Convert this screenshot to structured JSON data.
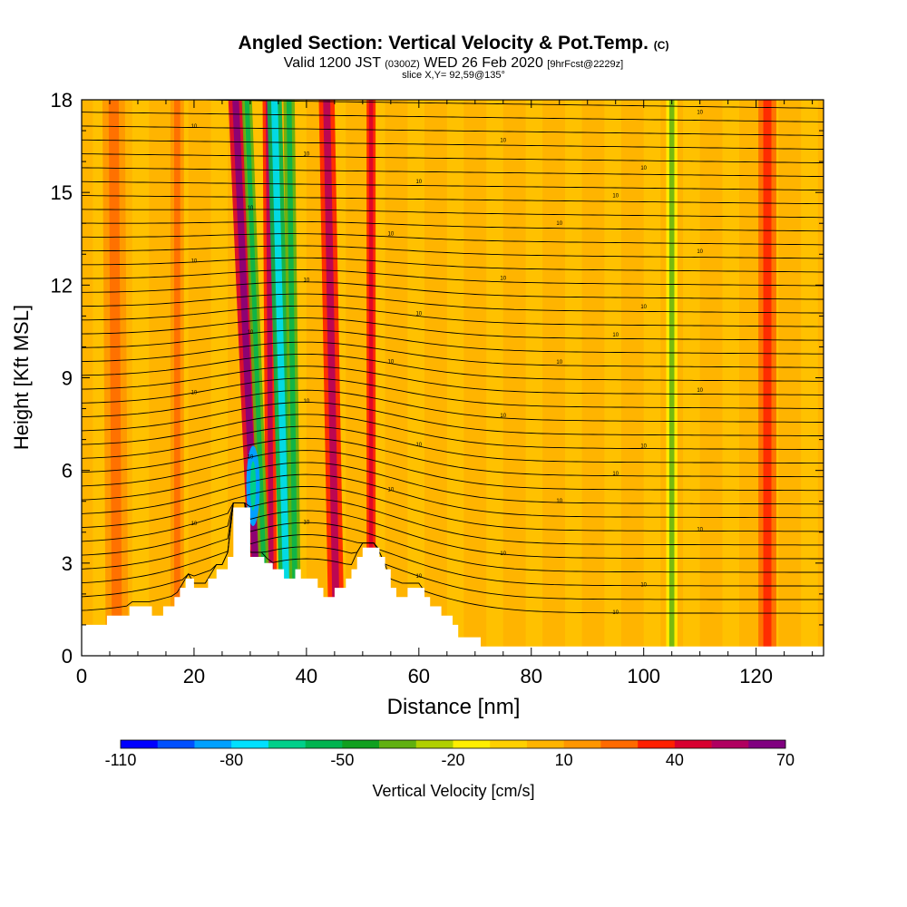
{
  "title": {
    "main": "Angled Section: Vertical Velocity & Pot.Temp.",
    "main_units": "(C)",
    "valid_prefix": "Valid 1200 JST",
    "valid_zulu": "(0300Z)",
    "valid_date": "WED 26 Feb 2020",
    "valid_fcst": "[9hrFcst@2229z]",
    "slice": "slice X,Y= 92,59@135°"
  },
  "chart_data": {
    "type": "heatmap",
    "xlabel": "Distance [nm]",
    "ylabel": "Height [Kft MSL]",
    "xlim": [
      0,
      132
    ],
    "ylim": [
      0,
      18
    ],
    "x_ticks": [
      0,
      20,
      40,
      60,
      80,
      100,
      120
    ],
    "y_ticks": [
      0,
      3,
      6,
      9,
      12,
      15,
      18
    ],
    "colorbar": {
      "label": "Vertical Velocity [cm/s]",
      "tick_labels": [
        "-110",
        "-80",
        "-50",
        "-20",
        "10",
        "40",
        "70"
      ],
      "levels": [
        -110,
        -100,
        -90,
        -80,
        -70,
        -60,
        -50,
        -40,
        -30,
        -20,
        -10,
        0,
        10,
        20,
        30,
        40,
        50,
        60,
        70
      ],
      "colors": [
        "#0000ff",
        "#0050ff",
        "#00a0ff",
        "#00e0ff",
        "#00d08a",
        "#00b450",
        "#10a020",
        "#60b010",
        "#b0d000",
        "#ffee00",
        "#ffd000",
        "#ffb400",
        "#ff9600",
        "#ff6a00",
        "#ff2000",
        "#d80030",
        "#b00060",
        "#800080"
      ]
    },
    "background_band_color": "#ffb000",
    "updraft_bands": [
      {
        "x_center": 29.5,
        "tilt": 0.35,
        "width": 1.3,
        "value": 45
      },
      {
        "x_center": 33.5,
        "tilt": 0.05,
        "width": 1.0,
        "value": 35
      },
      {
        "x_center": 44.5,
        "tilt": 0.15,
        "width": 1.4,
        "value": 35
      },
      {
        "x_center": 51.5,
        "tilt": 0.0,
        "width": 0.8,
        "value": 30
      },
      {
        "x_center": 6,
        "tilt": 0.05,
        "width": 2.0,
        "value": 10
      },
      {
        "x_center": 17,
        "tilt": 0.0,
        "width": 1.2,
        "value": 10
      },
      {
        "x_center": 122,
        "tilt": 0.0,
        "width": 1.6,
        "value": 20
      }
    ],
    "downdraft_bands": [
      {
        "x_center": 31.2,
        "tilt": 0.3,
        "width": 0.9,
        "value": -40
      },
      {
        "x_center": 35.5,
        "tilt": 0.2,
        "width": 1.3,
        "value": -55
      },
      {
        "x_center": 37.5,
        "tilt": 0.1,
        "width": 1.0,
        "value": -35
      },
      {
        "x_center": 105,
        "tilt": 0.0,
        "width": 1.0,
        "value": -20
      }
    ],
    "downdraft_core": {
      "x": 30.5,
      "y": 5.5,
      "value": -90
    },
    "terrain": [
      [
        0,
        1
      ],
      [
        4.5,
        1
      ],
      [
        4.5,
        1.3
      ],
      [
        8.5,
        1.3
      ],
      [
        8.5,
        1.6
      ],
      [
        12.5,
        1.6
      ],
      [
        12.5,
        1.3
      ],
      [
        14.5,
        1.3
      ],
      [
        14.5,
        1.6
      ],
      [
        16.5,
        1.6
      ],
      [
        16.5,
        1.9
      ],
      [
        17.5,
        1.9
      ],
      [
        17.5,
        2.2
      ],
      [
        18.5,
        2.2
      ],
      [
        18.5,
        2.5
      ],
      [
        20,
        2.5
      ],
      [
        20,
        2.2
      ],
      [
        22.5,
        2.2
      ],
      [
        22.5,
        2.5
      ],
      [
        24,
        2.5
      ],
      [
        24,
        2.8
      ],
      [
        26,
        2.8
      ],
      [
        26,
        3.2
      ],
      [
        27,
        3.2
      ],
      [
        27,
        4.8
      ],
      [
        30,
        4.8
      ],
      [
        30,
        3.2
      ],
      [
        32.5,
        3.2
      ],
      [
        32.5,
        3.0
      ],
      [
        34,
        3.0
      ],
      [
        34,
        2.8
      ],
      [
        36,
        2.8
      ],
      [
        36,
        2.5
      ],
      [
        38,
        2.5
      ],
      [
        38,
        2.8
      ],
      [
        39,
        2.8
      ],
      [
        39,
        2.5
      ],
      [
        42,
        2.5
      ],
      [
        42,
        2.2
      ],
      [
        43,
        2.2
      ],
      [
        43,
        1.9
      ],
      [
        45,
        1.9
      ],
      [
        45,
        2.2
      ],
      [
        47,
        2.2
      ],
      [
        47,
        2.5
      ],
      [
        48,
        2.5
      ],
      [
        48,
        2.8
      ],
      [
        49,
        2.8
      ],
      [
        49,
        3.2
      ],
      [
        50,
        3.2
      ],
      [
        50,
        3.5
      ],
      [
        53,
        3.5
      ],
      [
        53,
        3.2
      ],
      [
        54,
        3.2
      ],
      [
        54,
        2.8
      ],
      [
        55,
        2.8
      ],
      [
        55,
        2.2
      ],
      [
        56,
        2.2
      ],
      [
        56,
        1.9
      ],
      [
        58,
        1.9
      ],
      [
        58,
        2.2
      ],
      [
        61,
        2.2
      ],
      [
        61,
        1.9
      ],
      [
        62,
        1.9
      ],
      [
        62,
        1.6
      ],
      [
        64,
        1.6
      ],
      [
        64,
        1.3
      ],
      [
        66,
        1.3
      ],
      [
        66,
        1.0
      ],
      [
        67,
        1.0
      ],
      [
        67,
        0.6
      ],
      [
        71,
        0.6
      ],
      [
        71,
        0.3
      ],
      [
        132,
        0.3
      ]
    ],
    "isentropes": {
      "count": 38,
      "label_text": "10",
      "label_x": [
        95,
        60,
        100,
        40,
        75,
        20,
        110,
        55,
        85,
        30
      ]
    }
  }
}
